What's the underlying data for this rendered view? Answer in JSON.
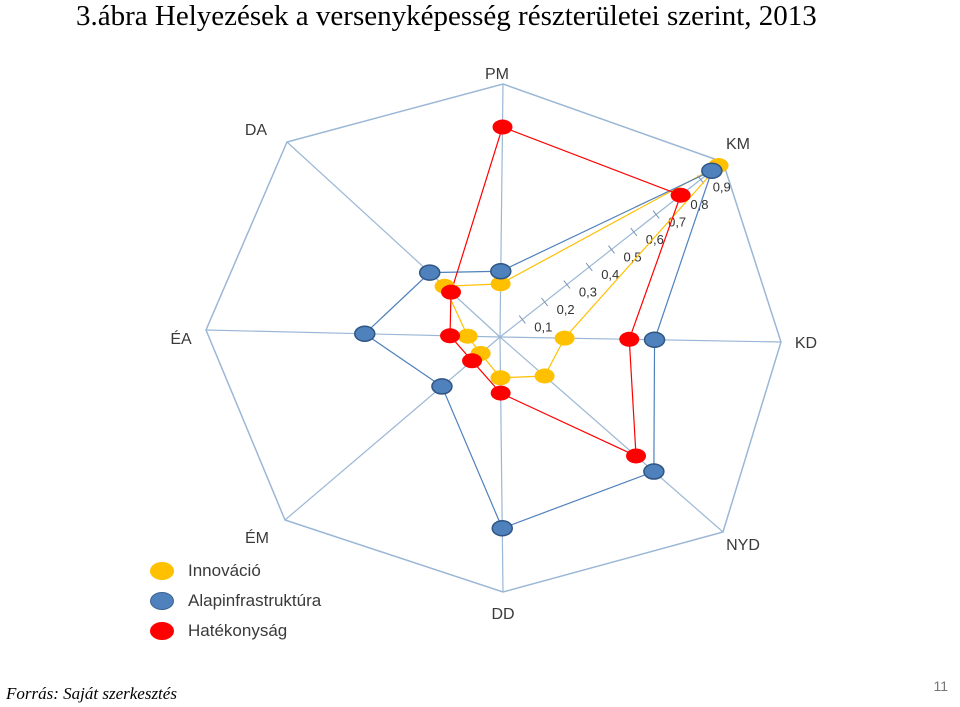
{
  "title": "3.ábra Helyezések a versenyképesség részterületei szerint, 2013",
  "source": "Forrás: Saját szerkesztés",
  "page_number": "11",
  "chart_data": {
    "type": "radar",
    "axes": [
      "PM",
      "KM",
      "KD",
      "NYD",
      "DD",
      "ÉM",
      "ÉA",
      "DA"
    ],
    "scale_labels": [
      "0,1",
      "0,2",
      "0,3",
      "0,4",
      "0,5",
      "0,6",
      "0,7",
      "0,8",
      "0,9"
    ],
    "range": [
      0,
      1
    ],
    "series": [
      {
        "name": "Innováció",
        "color": "#FFC000",
        "values": [
          0.21,
          0.98,
          0.23,
          0.2,
          0.16,
          0.09,
          0.11,
          0.26
        ]
      },
      {
        "name": "Alapinfrastruktúra",
        "color": "#4F81BD",
        "values": [
          0.26,
          0.95,
          0.55,
          0.69,
          0.75,
          0.27,
          0.46,
          0.33
        ]
      },
      {
        "name": "Hatékonyság",
        "color": "#FF0000",
        "values": [
          0.83,
          0.81,
          0.46,
          0.61,
          0.22,
          0.13,
          0.17,
          0.23
        ]
      }
    ]
  }
}
